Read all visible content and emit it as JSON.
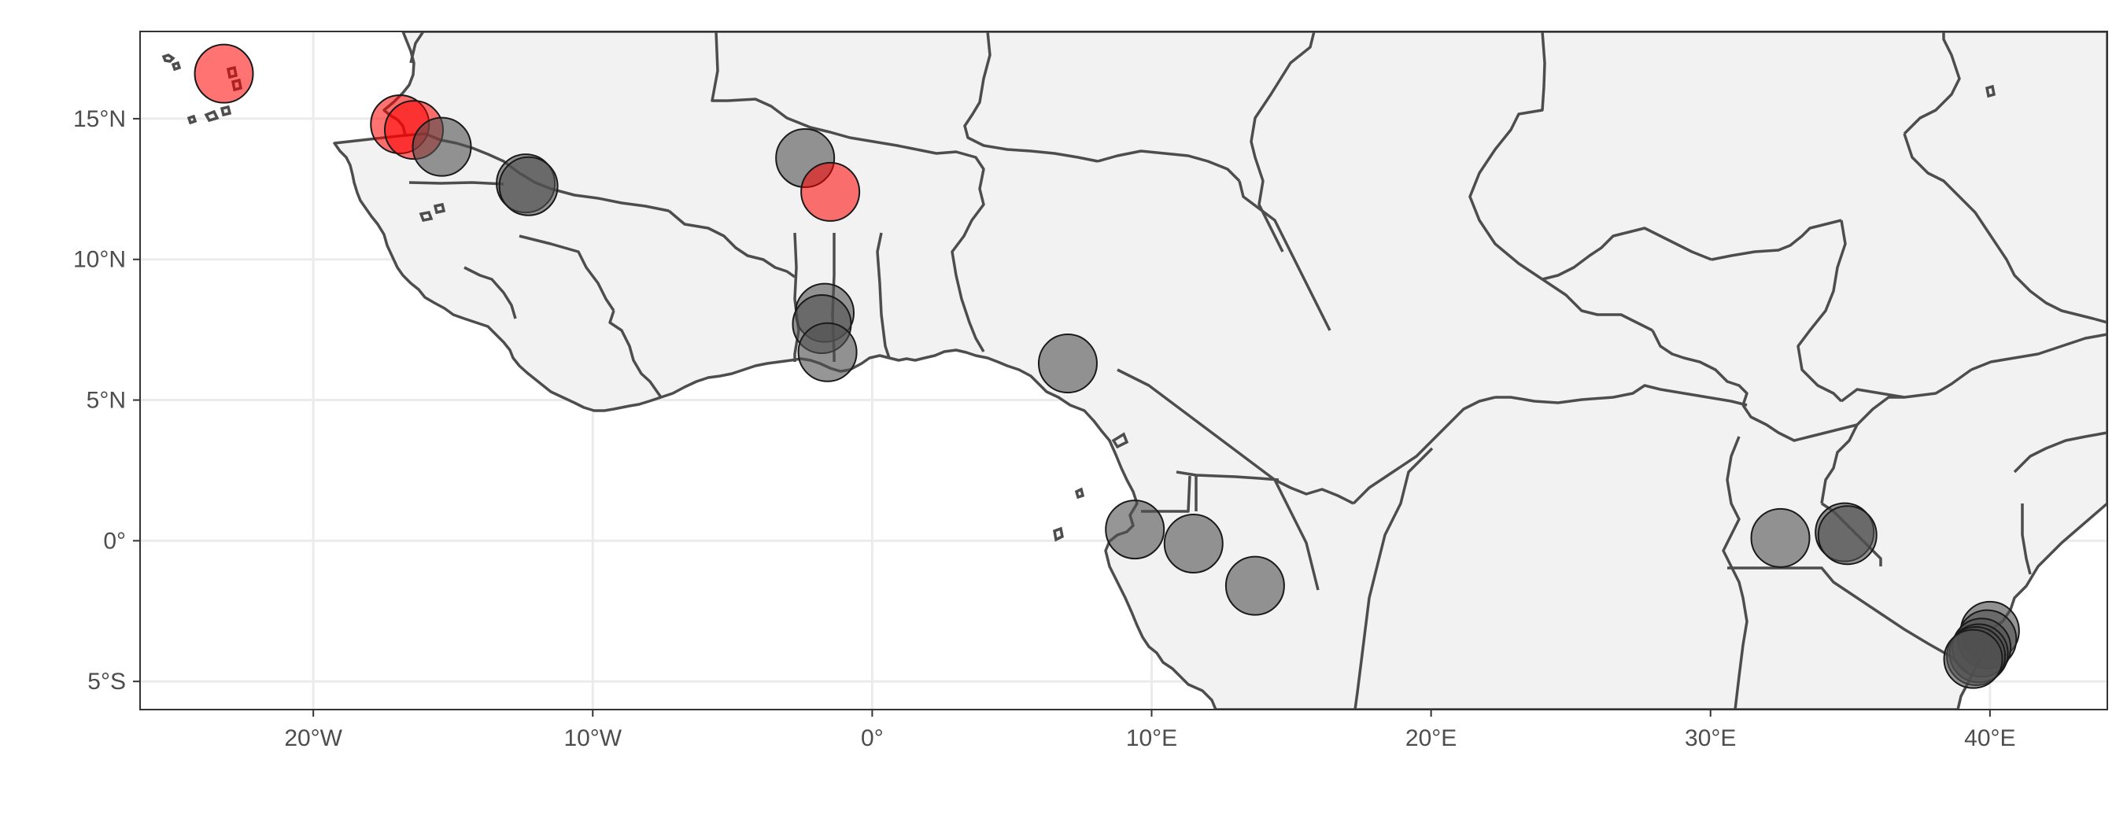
{
  "map": {
    "x_range": [
      -26.2,
      44.2
    ],
    "y_range": [
      -6.0,
      18.1
    ],
    "x_ticks": [
      {
        "value": -20,
        "label": "20°W"
      },
      {
        "value": -10,
        "label": "10°W"
      },
      {
        "value": 0,
        "label": "0°"
      },
      {
        "value": 10,
        "label": "10°E"
      },
      {
        "value": 20,
        "label": "20°E"
      },
      {
        "value": 30,
        "label": "30°E"
      },
      {
        "value": 40,
        "label": "40°E"
      }
    ],
    "y_ticks": [
      {
        "value": 15,
        "label": "15°N"
      },
      {
        "value": 10,
        "label": "10°N"
      },
      {
        "value": 5,
        "label": "5°N"
      },
      {
        "value": 0,
        "label": "0°"
      },
      {
        "value": -5,
        "label": "5°S"
      }
    ],
    "colors": {
      "land": "#f2f2f2",
      "border": "#4d4d4d",
      "grid": "#ebebeb",
      "ocean": "#ffffff",
      "highlight": "#ff0000",
      "point": "#505050"
    },
    "points": [
      {
        "lon": -23.2,
        "lat": 16.6,
        "highlight": true
      },
      {
        "lon": -16.9,
        "lat": 14.8,
        "highlight": true
      },
      {
        "lon": -16.4,
        "lat": 14.6,
        "highlight": true
      },
      {
        "lon": -15.4,
        "lat": 14.0,
        "highlight": false
      },
      {
        "lon": -12.4,
        "lat": 12.7,
        "highlight": false
      },
      {
        "lon": -12.3,
        "lat": 12.6,
        "highlight": false
      },
      {
        "lon": -2.4,
        "lat": 13.6,
        "highlight": false
      },
      {
        "lon": -1.5,
        "lat": 12.4,
        "highlight": true
      },
      {
        "lon": -1.7,
        "lat": 8.1,
        "highlight": false
      },
      {
        "lon": -1.8,
        "lat": 7.7,
        "highlight": false
      },
      {
        "lon": -1.6,
        "lat": 6.7,
        "highlight": false
      },
      {
        "lon": 7.0,
        "lat": 6.3,
        "highlight": false
      },
      {
        "lon": 9.4,
        "lat": 0.4,
        "highlight": false
      },
      {
        "lon": 11.5,
        "lat": -0.1,
        "highlight": false
      },
      {
        "lon": 13.7,
        "lat": -1.6,
        "highlight": false
      },
      {
        "lon": 32.5,
        "lat": 0.1,
        "highlight": false
      },
      {
        "lon": 34.8,
        "lat": 0.3,
        "highlight": false
      },
      {
        "lon": 34.9,
        "lat": 0.2,
        "highlight": false
      },
      {
        "lon": 40.0,
        "lat": -3.2,
        "highlight": false
      },
      {
        "lon": 39.9,
        "lat": -3.5,
        "highlight": false
      },
      {
        "lon": 39.7,
        "lat": -3.8,
        "highlight": false
      },
      {
        "lon": 39.6,
        "lat": -4.0,
        "highlight": false
      },
      {
        "lon": 39.5,
        "lat": -4.1,
        "highlight": false
      },
      {
        "lon": 39.4,
        "lat": -4.2,
        "highlight": false
      }
    ]
  }
}
